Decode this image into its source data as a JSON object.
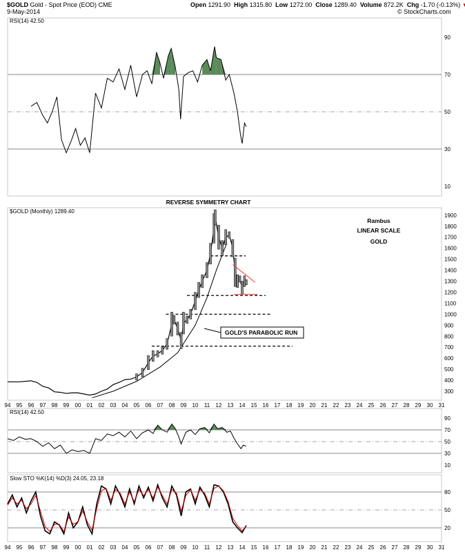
{
  "header": {
    "symbol": "$GOLD",
    "name": "Gold - Spot Price (EOD)",
    "exchange": "CME",
    "date": "9-May-2014",
    "open_label": "Open",
    "open": "1291.90",
    "high_label": "High",
    "high": "1315.80",
    "low_label": "Low",
    "low": "1272.00",
    "close_label": "Close",
    "close": "1289.40",
    "volume_label": "Volume",
    "volume": "872.2K",
    "chg_label": "Chg",
    "chg": "-1.70 (-0.13%)",
    "watermark": "© StockCharts.com"
  },
  "colors": {
    "fill_green": "#5a8a5a",
    "stoch_d": "#cc0000",
    "trend_red": "#ff3333"
  },
  "chart_data": [
    {
      "type": "line",
      "panel": "rsi-top",
      "legend": "RSI(14) 42.50",
      "ylim": [
        0,
        100
      ],
      "yticks": [
        10,
        30,
        50,
        70,
        90
      ],
      "ref_lines": [
        30,
        50,
        70
      ],
      "x": [
        1996.0,
        1996.5,
        1997.0,
        1997.4,
        1997.8,
        1998.2,
        1998.6,
        1999.0,
        1999.4,
        1999.8,
        2000.2,
        2000.6,
        2001.0,
        2001.5,
        2002.0,
        2002.5,
        2003.0,
        2003.5,
        2004.0,
        2004.5,
        2005.0,
        2005.5,
        2005.9,
        2006.3,
        2006.7,
        2007.0,
        2007.3,
        2007.7,
        2007.95,
        2008.3,
        2008.6,
        2008.75,
        2009.0,
        2009.4,
        2009.8,
        2010.2,
        2010.6,
        2011.0,
        2011.3,
        2011.65,
        2011.8,
        2012.2,
        2012.6,
        2012.9,
        2013.3,
        2013.6,
        2013.85,
        2014.0,
        2014.2,
        2014.35
      ],
      "y": [
        53,
        55,
        48,
        44,
        50,
        58,
        35,
        28,
        34,
        41,
        32,
        36,
        28,
        60,
        52,
        68,
        66,
        73,
        62,
        75,
        58,
        70,
        72,
        65,
        82,
        76,
        68,
        80,
        84,
        74,
        62,
        46,
        69,
        71,
        72,
        66,
        75,
        78,
        72,
        85,
        79,
        78,
        67,
        70,
        60,
        50,
        38,
        33,
        44,
        42
      ]
    },
    {
      "type": "line",
      "panel": "price",
      "title": "REVERSE SYMMETRY CHART",
      "legend": "$GOLD (Monthly) 1289.40",
      "scale": "linear",
      "ylim": [
        200,
        1950
      ],
      "yticks": [
        300,
        400,
        500,
        600,
        700,
        800,
        900,
        1000,
        1100,
        1200,
        1300,
        1400,
        1500,
        1600,
        1700,
        1800,
        1900
      ],
      "xticks": [
        "94",
        "95",
        "96",
        "97",
        "98",
        "99",
        "00",
        "01",
        "02",
        "03",
        "04",
        "05",
        "06",
        "07",
        "08",
        "09",
        "10",
        "11",
        "12",
        "13",
        "14",
        "15",
        "16",
        "17",
        "18",
        "19",
        "20",
        "21",
        "22",
        "23",
        "24",
        "25",
        "26",
        "27",
        "28",
        "29",
        "30",
        "31"
      ],
      "x": [
        1994.0,
        1995.0,
        1996.0,
        1996.5,
        1997.0,
        1997.5,
        1998.0,
        1998.5,
        1999.0,
        1999.5,
        2000.0,
        2000.5,
        2001.0,
        2001.5,
        2002.0,
        2002.5,
        2003.0,
        2003.5,
        2004.0,
        2004.5,
        2005.0,
        2005.5,
        2006.0,
        2006.4,
        2006.8,
        2007.2,
        2007.6,
        2008.0,
        2008.2,
        2008.5,
        2008.8,
        2009.0,
        2009.3,
        2009.6,
        2010.0,
        2010.3,
        2010.6,
        2011.0,
        2011.3,
        2011.6,
        2011.7,
        2012.0,
        2012.3,
        2012.6,
        2012.9,
        2013.2,
        2013.4,
        2013.6,
        2013.8,
        2014.0,
        2014.2,
        2014.35
      ],
      "y": [
        385,
        385,
        395,
        380,
        345,
        330,
        295,
        290,
        280,
        285,
        285,
        275,
        265,
        275,
        300,
        320,
        360,
        380,
        405,
        410,
        430,
        470,
        560,
        620,
        640,
        670,
        730,
        910,
        950,
        870,
        760,
        920,
        950,
        1000,
        1120,
        1220,
        1300,
        1400,
        1550,
        1780,
        1880,
        1700,
        1600,
        1700,
        1720,
        1600,
        1380,
        1300,
        1320,
        1240,
        1300,
        1290
      ],
      "annotations": [
        {
          "text": "Rambus"
        },
        {
          "text": "LINEAR SCALE"
        },
        {
          "text": "GOLD"
        },
        {
          "text": "GOLD'S PARABOLIC RUN"
        }
      ],
      "horizontal_levels": [
        {
          "y": 1530,
          "x0": 2011.3,
          "x1": 2014.3
        },
        {
          "y": 1170,
          "x0": 2009.3,
          "x1": 2016.0
        },
        {
          "y": 1000,
          "x0": 2007.5,
          "x1": 2016.5
        },
        {
          "y": 710,
          "x0": 2006.3,
          "x1": 2018.3
        }
      ],
      "red_support": {
        "y": 1180,
        "x0": 2013.3,
        "x1": 2015.3
      },
      "red_trend": {
        "x0": 2013.2,
        "y0": 1450,
        "x1": 2015.1,
        "y1": 1290
      },
      "parabolic_arc": {
        "x": [
          2001.2,
          2003.0,
          2005.0,
          2007.0,
          2008.5,
          2010.0,
          2011.0,
          2011.8,
          2012.7
        ],
        "y": [
          240,
          300,
          390,
          520,
          650,
          900,
          1150,
          1400,
          1650
        ]
      }
    },
    {
      "type": "line",
      "panel": "rsi-bottom",
      "legend": "RSI(14) 42.50",
      "ylim": [
        0,
        100
      ],
      "yticks": [
        10,
        30,
        50,
        70,
        90
      ],
      "ref_lines": [
        30,
        50,
        70
      ],
      "x": [
        1994.0,
        1994.5,
        1995.0,
        1995.5,
        1996.0,
        1996.5,
        1997.0,
        1997.5,
        1998.0,
        1998.5,
        1999.0,
        1999.5,
        2000.0,
        2000.5,
        2001.0,
        2001.5,
        2002.0,
        2002.5,
        2003.0,
        2003.5,
        2004.0,
        2004.5,
        2005.0,
        2005.5,
        2006.0,
        2006.4,
        2006.8,
        2007.2,
        2007.6,
        2008.0,
        2008.3,
        2008.6,
        2008.8,
        2009.2,
        2009.6,
        2010.0,
        2010.4,
        2010.8,
        2011.2,
        2011.6,
        2011.9,
        2012.3,
        2012.7,
        2013.0,
        2013.3,
        2013.6,
        2013.9,
        2014.1,
        2014.35
      ],
      "y": [
        55,
        52,
        58,
        54,
        55,
        50,
        42,
        48,
        38,
        44,
        30,
        36,
        33,
        35,
        30,
        55,
        52,
        63,
        60,
        66,
        58,
        68,
        55,
        65,
        70,
        64,
        78,
        70,
        66,
        80,
        72,
        58,
        46,
        66,
        70,
        62,
        72,
        74,
        65,
        80,
        72,
        74,
        66,
        68,
        56,
        46,
        38,
        44,
        42
      ]
    },
    {
      "type": "line",
      "panel": "stochastic",
      "legend": "Slow STO %K(14) %D(3) 24.05, 23.18",
      "ylim": [
        0,
        100
      ],
      "yticks": [
        20,
        50,
        80
      ],
      "ref_lines": [
        20,
        50,
        80
      ],
      "series": [
        {
          "name": "%K",
          "x": [
            1994.0,
            1994.4,
            1994.8,
            1995.2,
            1995.6,
            1996.0,
            1996.4,
            1996.8,
            1997.2,
            1997.6,
            1998.0,
            1998.4,
            1998.8,
            1999.2,
            1999.6,
            2000.0,
            2000.4,
            2000.8,
            2001.2,
            2001.6,
            2002.0,
            2002.4,
            2002.8,
            2003.2,
            2003.6,
            2004.0,
            2004.4,
            2004.8,
            2005.2,
            2005.6,
            2006.0,
            2006.4,
            2006.8,
            2007.2,
            2007.6,
            2008.0,
            2008.4,
            2008.8,
            2009.2,
            2009.6,
            2010.0,
            2010.4,
            2010.8,
            2011.2,
            2011.6,
            2012.0,
            2012.4,
            2012.8,
            2013.2,
            2013.6,
            2014.0,
            2014.35
          ],
          "y": [
            60,
            75,
            55,
            70,
            45,
            65,
            80,
            40,
            15,
            10,
            30,
            25,
            10,
            45,
            20,
            30,
            55,
            25,
            10,
            60,
            90,
            85,
            60,
            90,
            75,
            55,
            85,
            60,
            90,
            70,
            88,
            65,
            92,
            70,
            55,
            90,
            75,
            40,
            80,
            85,
            60,
            88,
            75,
            55,
            92,
            90,
            80,
            60,
            30,
            20,
            12,
            24
          ]
        },
        {
          "name": "%D",
          "x": [
            1994.0,
            1994.4,
            1994.8,
            1995.2,
            1995.6,
            1996.0,
            1996.4,
            1996.8,
            1997.2,
            1997.6,
            1998.0,
            1998.4,
            1998.8,
            1999.2,
            1999.6,
            2000.0,
            2000.4,
            2000.8,
            2001.2,
            2001.6,
            2002.0,
            2002.4,
            2002.8,
            2003.2,
            2003.6,
            2004.0,
            2004.4,
            2004.8,
            2005.2,
            2005.6,
            2006.0,
            2006.4,
            2006.8,
            2007.2,
            2007.6,
            2008.0,
            2008.4,
            2008.8,
            2009.2,
            2009.6,
            2010.0,
            2010.4,
            2010.8,
            2011.2,
            2011.6,
            2012.0,
            2012.4,
            2012.8,
            2013.2,
            2013.6,
            2014.0,
            2014.35
          ],
          "y": [
            58,
            70,
            60,
            66,
            52,
            60,
            74,
            48,
            22,
            14,
            26,
            26,
            14,
            38,
            26,
            30,
            48,
            30,
            16,
            52,
            82,
            86,
            66,
            84,
            78,
            60,
            80,
            64,
            84,
            74,
            84,
            70,
            88,
            74,
            60,
            84,
            78,
            48,
            74,
            84,
            66,
            84,
            78,
            60,
            86,
            90,
            82,
            64,
            36,
            24,
            15,
            23
          ]
        }
      ]
    }
  ]
}
